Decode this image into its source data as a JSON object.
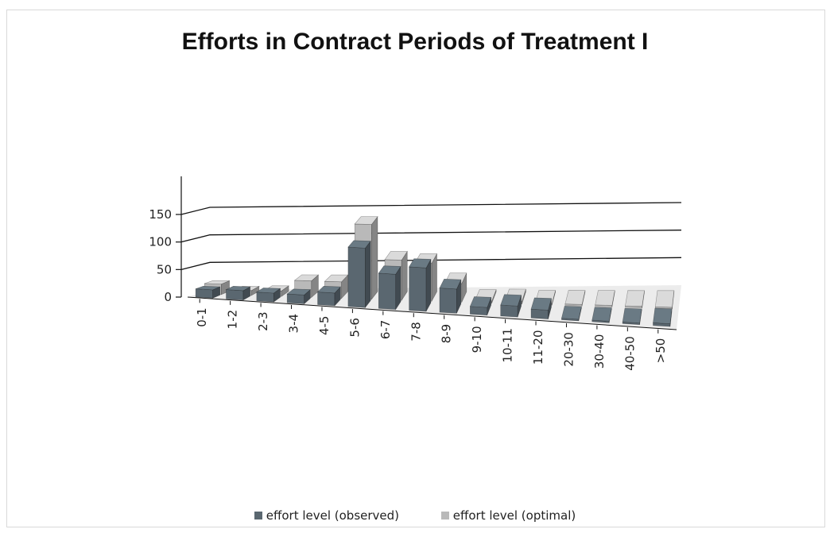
{
  "chart_data": {
    "type": "bar",
    "title": "Efforts in Contract Periods of Treatment I",
    "xlabel": "",
    "ylabel": "",
    "ylim": [
      0,
      150
    ],
    "yticks": [
      "0",
      "50",
      "100",
      "150"
    ],
    "categories": [
      "0-1",
      "1-2",
      "2-3",
      "3-4",
      "4-5",
      "5-6",
      "6-7",
      "7-8",
      "8-9",
      "9-10",
      "10-11",
      "11-20",
      "20-30",
      "30-40",
      "40-50",
      ">50"
    ],
    "series": [
      {
        "name": "effort level (observed)",
        "color": "#5a6770",
        "values": [
          15,
          17,
          16,
          16,
          23,
          108,
          64,
          79,
          44,
          14,
          20,
          16,
          1,
          2,
          1,
          5
        ]
      },
      {
        "name": "effort level (optimal)",
        "color": "#b9b9b9",
        "values": [
          19,
          9,
          10,
          30,
          30,
          136,
          73,
          69,
          34,
          4,
          5,
          2,
          2,
          3,
          3,
          3
        ]
      }
    ],
    "grid": true,
    "legend_position": "bottom",
    "view": "3d-perspective"
  }
}
